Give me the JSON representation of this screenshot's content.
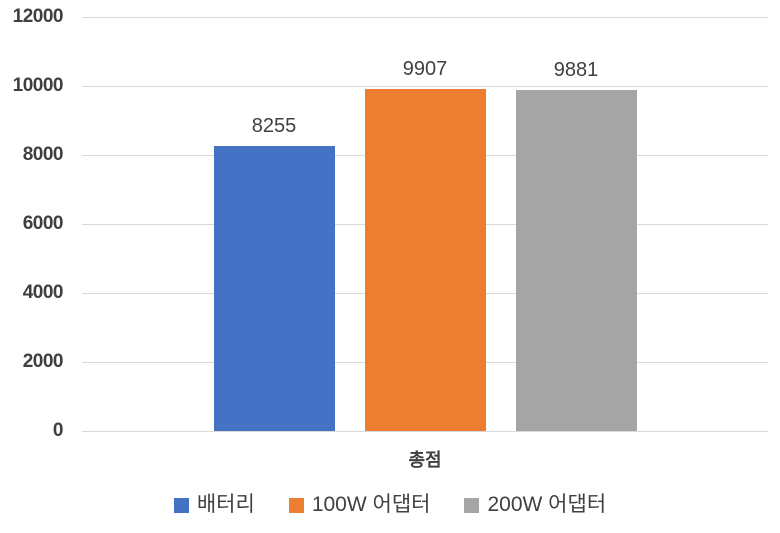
{
  "chart_data": {
    "type": "bar",
    "title": "",
    "categories": [
      "총점"
    ],
    "series": [
      {
        "name": "배터리",
        "values": [
          8255
        ],
        "color": "#4472C4"
      },
      {
        "name": "100W 어댑터",
        "values": [
          9907
        ],
        "color": "#ED7D31"
      },
      {
        "name": "200W 어댑터",
        "values": [
          9881
        ],
        "color": "#A5A5A5"
      }
    ],
    "data_labels": [
      "8255",
      "9907",
      "9881"
    ],
    "xlabel": "총점",
    "ylabel": "",
    "ylim": [
      0,
      12000
    ],
    "ytick_step": 2000,
    "ytick_labels": [
      "0",
      "2000",
      "4000",
      "6000",
      "8000",
      "10000",
      "12000"
    ],
    "grid": true,
    "legend_position": "bottom",
    "legend_entries": [
      "배터리",
      "100W 어댑터",
      "200W 어댑터"
    ]
  },
  "colors": {
    "background": "#FFFFFF",
    "gridline": "#D9D9D9",
    "axis_text": "#3F3F3F",
    "label_text": "#404040"
  }
}
